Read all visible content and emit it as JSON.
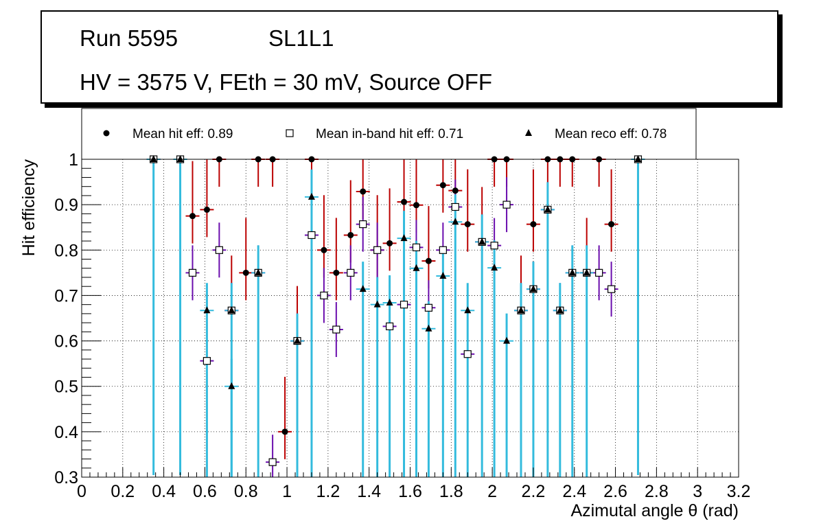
{
  "header": {
    "run": "Run 5595",
    "layer": "SL1L1",
    "conditions": "HV = 3575 V, FEth = 30 mV, Source OFF"
  },
  "colors": {
    "hit_error": "#bb0000",
    "inband_error": "#6a0dad",
    "reco_error": "#33bbdd",
    "marker": "#000000"
  },
  "chart_data": {
    "type": "scatter",
    "xlabel": "Azimutal angle θ (rad)",
    "ylabel": "Hit efficiency",
    "xlim": [
      0,
      3.2
    ],
    "ylim": [
      0.3,
      1.0
    ],
    "x_ticks": [
      "0",
      "0.2",
      "0.4",
      "0.6",
      "0.8",
      "1",
      "1.2",
      "1.4",
      "1.6",
      "1.8",
      "2",
      "2.2",
      "2.4",
      "2.6",
      "2.8",
      "3",
      "3.2"
    ],
    "y_ticks": [
      "0.3",
      "0.4",
      "0.5",
      "0.6",
      "0.7",
      "0.8",
      "0.9",
      "1"
    ],
    "grid": true,
    "legend_position": "top",
    "legend": [
      {
        "marker": "circle",
        "label": "Mean hit  eff: 0.89"
      },
      {
        "marker": "open-square",
        "label": "Mean in-band hit eff: 0.71"
      },
      {
        "marker": "triangle",
        "label": "Mean reco eff: 0.78"
      }
    ],
    "series": [
      {
        "name": "hit",
        "marker": "circle",
        "points": [
          {
            "x": 0.35,
            "y": 1.0
          },
          {
            "x": 0.48,
            "y": 1.0
          },
          {
            "x": 0.54,
            "y": 0.875
          },
          {
            "x": 0.61,
            "y": 0.889
          },
          {
            "x": 0.67,
            "y": 1.0
          },
          {
            "x": 0.73,
            "y": 0.667
          },
          {
            "x": 0.8,
            "y": 0.75
          },
          {
            "x": 0.86,
            "y": 1.0
          },
          {
            "x": 0.93,
            "y": 1.0
          },
          {
            "x": 0.99,
            "y": 0.4
          },
          {
            "x": 1.05,
            "y": 0.6
          },
          {
            "x": 1.12,
            "y": 1.0
          },
          {
            "x": 1.18,
            "y": 0.8
          },
          {
            "x": 1.24,
            "y": 0.75
          },
          {
            "x": 1.31,
            "y": 0.833
          },
          {
            "x": 1.37,
            "y": 0.929
          },
          {
            "x": 1.44,
            "y": 0.8
          },
          {
            "x": 1.5,
            "y": 0.815
          },
          {
            "x": 1.57,
            "y": 0.906
          },
          {
            "x": 1.63,
            "y": 0.899
          },
          {
            "x": 1.69,
            "y": 0.776
          },
          {
            "x": 1.76,
            "y": 0.943
          },
          {
            "x": 1.82,
            "y": 0.931
          },
          {
            "x": 1.88,
            "y": 0.857
          },
          {
            "x": 1.95,
            "y": 0.818
          },
          {
            "x": 2.01,
            "y": 1.0
          },
          {
            "x": 2.07,
            "y": 1.0
          },
          {
            "x": 2.14,
            "y": 0.667
          },
          {
            "x": 2.2,
            "y": 0.857
          },
          {
            "x": 2.27,
            "y": 1.0
          },
          {
            "x": 2.33,
            "y": 1.0
          },
          {
            "x": 2.39,
            "y": 1.0
          },
          {
            "x": 2.46,
            "y": 0.75
          },
          {
            "x": 2.52,
            "y": 1.0
          },
          {
            "x": 2.58,
            "y": 0.857
          },
          {
            "x": 2.71,
            "y": 1.0
          }
        ]
      },
      {
        "name": "in-band",
        "marker": "open-square",
        "points": [
          {
            "x": 0.35,
            "y": 1.0
          },
          {
            "x": 0.48,
            "y": 1.0
          },
          {
            "x": 0.54,
            "y": 0.75
          },
          {
            "x": 0.61,
            "y": 0.556
          },
          {
            "x": 0.67,
            "y": 0.8
          },
          {
            "x": 0.73,
            "y": 0.667
          },
          {
            "x": 0.86,
            "y": 0.75
          },
          {
            "x": 0.93,
            "y": 0.333
          },
          {
            "x": 1.05,
            "y": 0.6
          },
          {
            "x": 1.12,
            "y": 0.833
          },
          {
            "x": 1.18,
            "y": 0.7
          },
          {
            "x": 1.24,
            "y": 0.625
          },
          {
            "x": 1.31,
            "y": 0.75
          },
          {
            "x": 1.37,
            "y": 0.857
          },
          {
            "x": 1.44,
            "y": 0.8
          },
          {
            "x": 1.5,
            "y": 0.632
          },
          {
            "x": 1.57,
            "y": 0.68
          },
          {
            "x": 1.63,
            "y": 0.806
          },
          {
            "x": 1.69,
            "y": 0.673
          },
          {
            "x": 1.76,
            "y": 0.8
          },
          {
            "x": 1.82,
            "y": 0.895
          },
          {
            "x": 1.88,
            "y": 0.571
          },
          {
            "x": 1.95,
            "y": 0.818
          },
          {
            "x": 2.01,
            "y": 0.81
          },
          {
            "x": 2.07,
            "y": 0.9
          },
          {
            "x": 2.14,
            "y": 0.667
          },
          {
            "x": 2.2,
            "y": 0.714
          },
          {
            "x": 2.27,
            "y": 0.889
          },
          {
            "x": 2.33,
            "y": 0.667
          },
          {
            "x": 2.39,
            "y": 0.75
          },
          {
            "x": 2.46,
            "y": 0.75
          },
          {
            "x": 2.52,
            "y": 0.75
          },
          {
            "x": 2.58,
            "y": 0.714
          },
          {
            "x": 2.71,
            "y": 1.0
          }
        ]
      },
      {
        "name": "reco",
        "marker": "triangle",
        "points": [
          {
            "x": 0.35,
            "y": 1.0
          },
          {
            "x": 0.48,
            "y": 1.0
          },
          {
            "x": 0.61,
            "y": 0.667
          },
          {
            "x": 0.73,
            "y": 0.5
          },
          {
            "x": 0.73,
            "y": 0.667
          },
          {
            "x": 0.86,
            "y": 0.75
          },
          {
            "x": 1.05,
            "y": 0.6
          },
          {
            "x": 1.12,
            "y": 0.917
          },
          {
            "x": 1.37,
            "y": 0.714
          },
          {
            "x": 1.44,
            "y": 0.68
          },
          {
            "x": 1.5,
            "y": 0.684
          },
          {
            "x": 1.57,
            "y": 0.826
          },
          {
            "x": 1.63,
            "y": 0.76
          },
          {
            "x": 1.69,
            "y": 0.627
          },
          {
            "x": 1.76,
            "y": 0.743
          },
          {
            "x": 1.82,
            "y": 0.862
          },
          {
            "x": 1.88,
            "y": 0.667
          },
          {
            "x": 1.95,
            "y": 0.818
          },
          {
            "x": 2.01,
            "y": 0.761
          },
          {
            "x": 2.07,
            "y": 0.6
          },
          {
            "x": 2.14,
            "y": 0.667
          },
          {
            "x": 2.2,
            "y": 0.714
          },
          {
            "x": 2.27,
            "y": 0.889
          },
          {
            "x": 2.33,
            "y": 0.667
          },
          {
            "x": 2.39,
            "y": 0.75
          },
          {
            "x": 2.46,
            "y": 0.75
          },
          {
            "x": 2.71,
            "y": 1.0
          }
        ]
      }
    ]
  }
}
